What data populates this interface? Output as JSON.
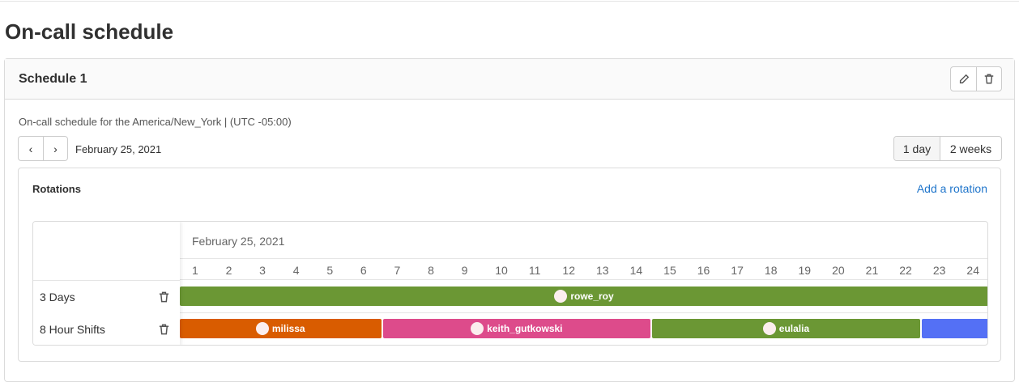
{
  "page": {
    "title": "On-call schedule"
  },
  "schedule": {
    "name": "Schedule 1",
    "description": "On-call schedule for the America/New_York | (UTC -05:00)",
    "current_date": "February 25, 2021",
    "views": [
      {
        "label": "1 day",
        "selected": true
      },
      {
        "label": "2 weeks",
        "selected": false
      }
    ]
  },
  "rotations": {
    "title": "Rotations",
    "add_label": "Add a rotation",
    "timeline_date": "February 25, 2021",
    "hours": [
      "1",
      "2",
      "3",
      "4",
      "5",
      "6",
      "7",
      "8",
      "9",
      "10",
      "11",
      "12",
      "13",
      "14",
      "15",
      "16",
      "17",
      "18",
      "19",
      "20",
      "21",
      "22",
      "23",
      "24"
    ],
    "rows": [
      {
        "name": "3 Days",
        "shifts": [
          {
            "user": "rowe_roy",
            "color": "#6b9734",
            "start_hour": 0,
            "end_hour": 24
          }
        ]
      },
      {
        "name": "8 Hour Shifts",
        "shifts": [
          {
            "user": "milissa",
            "color": "#d95c00",
            "start_hour": 0,
            "end_hour": 6
          },
          {
            "user": "keith_gutkowski",
            "color": "#dd4b8b",
            "start_hour": 6,
            "end_hour": 14
          },
          {
            "user": "eulalia",
            "color": "#6b9734",
            "start_hour": 14,
            "end_hour": 22
          },
          {
            "user": "",
            "color": "#5470f5",
            "start_hour": 22,
            "end_hour": 24
          }
        ]
      }
    ]
  }
}
